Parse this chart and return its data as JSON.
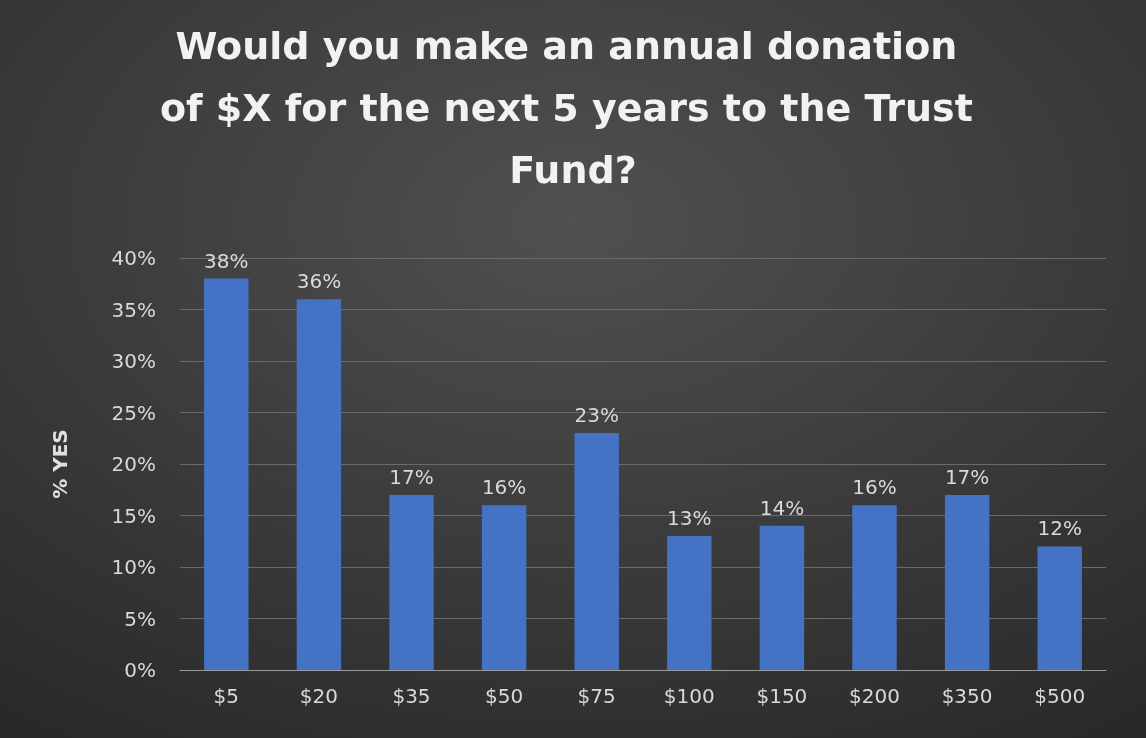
{
  "chart_data": {
    "type": "bar",
    "title": "Would you make an annual donation of $X for the next 5 years to the Trust Fund?",
    "ylabel": "% YES",
    "categories": [
      "$5",
      "$20",
      "$35",
      "$50",
      "$75",
      "$100",
      "$150",
      "$200",
      "$350",
      "$500"
    ],
    "values": [
      38,
      36,
      17,
      16,
      23,
      13,
      14,
      16,
      17,
      12
    ],
    "value_labels": [
      "38%",
      "36%",
      "17%",
      "16%",
      "23%",
      "13%",
      "14%",
      "16%",
      "17%",
      "12%"
    ],
    "color": "#4472c4",
    "ylim": [
      0,
      40
    ],
    "yticks": [
      {
        "value": 0,
        "label": "0%"
      },
      {
        "value": 5,
        "label": "5%"
      },
      {
        "value": 10,
        "label": "10%"
      },
      {
        "value": 15,
        "label": "15%"
      },
      {
        "value": 20,
        "label": "20%"
      },
      {
        "value": 25,
        "label": "25%"
      },
      {
        "value": 30,
        "label": "30%"
      },
      {
        "value": 35,
        "label": "35%"
      },
      {
        "value": 40,
        "label": "40%"
      }
    ],
    "grid": "y"
  }
}
